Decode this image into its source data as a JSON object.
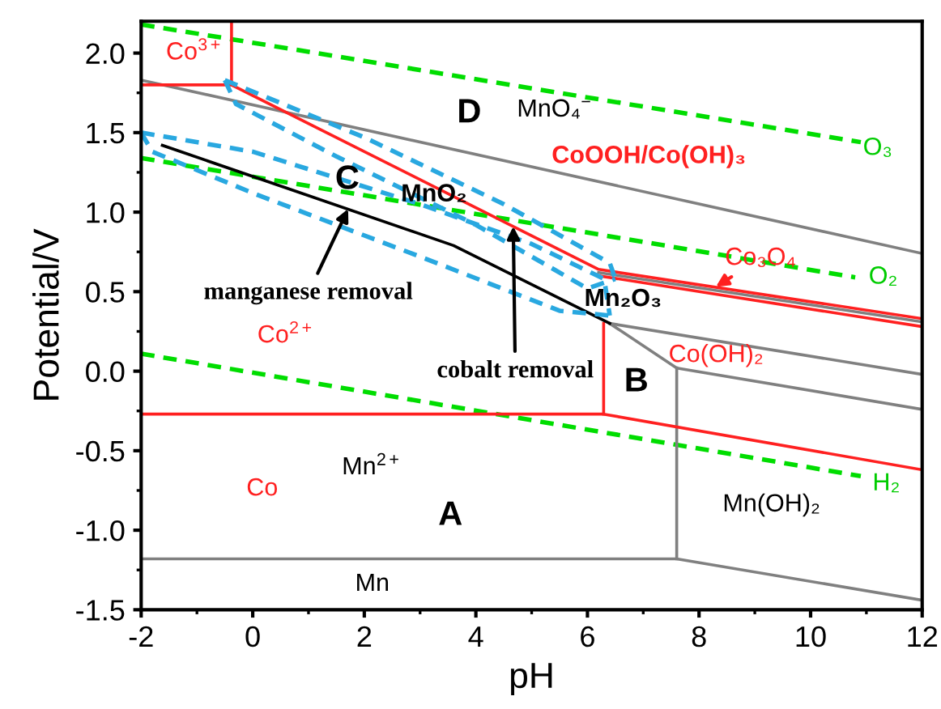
{
  "chart_data": {
    "type": "line",
    "xlabel": "pH",
    "ylabel": "Potential/V",
    "xlim": [
      -2,
      12
    ],
    "ylim": [
      -1.5,
      2.2
    ],
    "xticks": [
      -2,
      0,
      2,
      4,
      6,
      8,
      10,
      12
    ],
    "yticks": [
      {
        "value": -1.5,
        "label": "-1.5"
      },
      {
        "value": -1.0,
        "label": "-1.0"
      },
      {
        "value": -0.5,
        "label": "-0.5"
      },
      {
        "value": 0.0,
        "label": "0.0"
      },
      {
        "value": 0.5,
        "label": "0.5"
      },
      {
        "value": 1.0,
        "label": "1.0"
      },
      {
        "value": 1.5,
        "label": "1.5"
      },
      {
        "value": 2.0,
        "label": "2.0"
      }
    ],
    "grid": false,
    "legend": false,
    "marker": "none",
    "series": [
      {
        "color": "#00dd00",
        "line_style": "dashed",
        "x": [
          -2,
          10.9
        ],
        "values": [
          2.18,
          1.44
        ]
      },
      {
        "color": "#00dd00",
        "line_style": "dashed",
        "x": [
          -2,
          10.8
        ],
        "values": [
          1.34,
          0.59
        ]
      },
      {
        "color": "#00dd00",
        "line_style": "dashed",
        "x": [
          -2,
          10.9
        ],
        "values": [
          0.11,
          -0.66
        ]
      },
      {
        "color": "#808080",
        "line_style": "solid",
        "x": [
          -2,
          12
        ],
        "values": [
          1.83,
          0.74
        ]
      },
      {
        "color": "#808080",
        "line_style": "solid",
        "x": [
          6.4,
          12
        ],
        "values": [
          0.3,
          -0.02
        ]
      },
      {
        "color": "#808080",
        "line_style": "solid",
        "x": [
          6.4,
          7.6,
          12
        ],
        "values": [
          0.3,
          0.02,
          -0.24
        ]
      },
      {
        "color": "#808080",
        "line_style": "solid",
        "x": [
          7.6,
          7.6
        ],
        "values": [
          0.02,
          -1.18
        ]
      },
      {
        "color": "#808080",
        "line_style": "solid",
        "x": [
          -2,
          7.6,
          12
        ],
        "values": [
          -1.18,
          -1.18,
          -1.44
        ]
      },
      {
        "color": "#808080",
        "line_style": "solid",
        "x": [
          6.2,
          12
        ],
        "values": [
          0.62,
          0.31
        ]
      },
      {
        "color": "#ff2020",
        "line_style": "solid",
        "x": [
          -0.38,
          -0.38,
          -2
        ],
        "values": [
          2.2,
          1.8,
          1.8
        ]
      },
      {
        "color": "#ff2020",
        "line_style": "solid",
        "x": [
          -0.38,
          6.2,
          12
        ],
        "values": [
          1.8,
          0.64,
          0.33
        ]
      },
      {
        "color": "#ff2020",
        "line_style": "solid",
        "x": [
          6.2,
          12
        ],
        "values": [
          0.6,
          0.28
        ]
      },
      {
        "color": "#ff2020",
        "line_style": "solid",
        "x": [
          6.29,
          6.29
        ],
        "values": [
          0.3,
          -0.27
        ]
      },
      {
        "color": "#ff2020",
        "line_style": "solid",
        "x": [
          -2,
          6.29,
          12
        ],
        "values": [
          -0.27,
          -0.27,
          -0.62
        ]
      },
      {
        "color": "#000000",
        "line_style": "solid",
        "x": [
          -1.62,
          3.6,
          6.4
        ],
        "values": [
          1.42,
          0.79,
          0.3
        ]
      },
      {
        "color": "#29a8e0",
        "line_style": "dashed",
        "x": [
          -0.5,
          2,
          4.5,
          6.4,
          6.5
        ],
        "values": [
          1.83,
          1.47,
          1.05,
          0.68,
          0.58
        ]
      },
      {
        "color": "#29a8e0",
        "line_style": "dashed",
        "x": [
          -0.5,
          -0.3,
          1.5,
          4,
          6.0,
          6.5
        ],
        "values": [
          1.83,
          1.68,
          1.35,
          0.92,
          0.52,
          0.58
        ]
      },
      {
        "color": "#29a8e0",
        "line_style": "dashed",
        "x": [
          -2,
          0,
          3,
          5,
          6.3,
          6.4
        ],
        "values": [
          1.5,
          1.38,
          1.05,
          0.8,
          0.58,
          0.35
        ]
      },
      {
        "color": "#29a8e0",
        "line_style": "dashed",
        "x": [
          -2,
          -1.8,
          0,
          3,
          5.5,
          6.4
        ],
        "values": [
          1.5,
          1.38,
          1.12,
          0.72,
          0.38,
          0.35
        ]
      }
    ],
    "annotations": [
      "Co$^{3+}$",
      "D",
      "MnO₄$^{−}$",
      "CoOOH/Co(OH)₃",
      "O₃",
      "C",
      "MnO₂",
      {
        "text": "Co₃O₄",
        "x": 8.3,
        "y": 0.53
      },
      "O₂",
      "Mn₂O₃",
      {
        "text": "manganese removal",
        "x": 1.71,
        "y": 1.02
      },
      "Co$^{2+}$",
      {
        "text": "cobalt removal",
        "x": 4.67,
        "y": 0.91
      },
      "B",
      "Co(OH)₂",
      "Mn$^{2+}$",
      "Co",
      "A",
      "H₂",
      "Mn(OH)₂",
      "Mn"
    ]
  }
}
